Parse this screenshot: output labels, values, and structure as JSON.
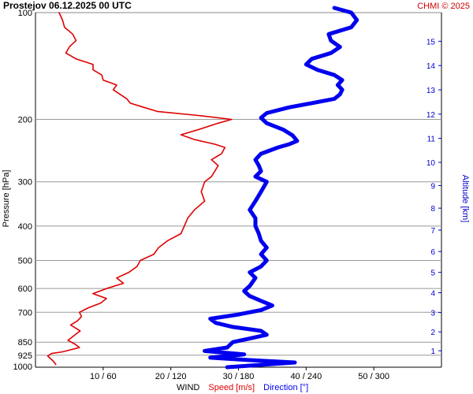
{
  "header": {
    "title": "Prostejov    06.12.2025 00 UTC",
    "credit": "CHMI © 2025"
  },
  "chart_data": {
    "type": "line",
    "title": "Prostejov    06.12.2025 00 UTC",
    "ylabel_left": "Pressure [hPa]",
    "ylabel_right": "Altitude [km]",
    "xlabel": {
      "prefix": "WIND",
      "speed": "Speed [m/s]",
      "direction": "Direction [°]"
    },
    "pressure_ticks": [
      100,
      200,
      300,
      400,
      500,
      600,
      700,
      850,
      925,
      1000
    ],
    "altitude_ticks": [
      1,
      2,
      3,
      4,
      5,
      6,
      7,
      8,
      9,
      10,
      11,
      12,
      13,
      14,
      15
    ],
    "x_tick_labels": [
      "10 / 60",
      "20 / 120",
      "30 / 180",
      "40 / 240",
      "50 / 300"
    ],
    "speed_range_ms": [
      0,
      60
    ],
    "direction_range_deg": [
      0,
      360
    ],
    "colors": {
      "speed": "#e00000",
      "direction": "#0000ee",
      "grid": "#999999",
      "credit": "#d00000"
    },
    "series": [
      {
        "name": "Speed [m/s]",
        "unit": "m/s",
        "points": [
          [
            982,
            3.0
          ],
          [
            960,
            2.6
          ],
          [
            930,
            1.8
          ],
          [
            915,
            2.4
          ],
          [
            905,
            4.0
          ],
          [
            880,
            6.5
          ],
          [
            860,
            5.8
          ],
          [
            840,
            4.8
          ],
          [
            820,
            5.5
          ],
          [
            790,
            6.6
          ],
          [
            760,
            5.2
          ],
          [
            740,
            6.2
          ],
          [
            720,
            6.8
          ],
          [
            700,
            6.5
          ],
          [
            680,
            7.8
          ],
          [
            660,
            9.6
          ],
          [
            640,
            10.5
          ],
          [
            620,
            8.5
          ],
          [
            600,
            10.5
          ],
          [
            580,
            13.0
          ],
          [
            560,
            12.0
          ],
          [
            540,
            13.8
          ],
          [
            520,
            15.0
          ],
          [
            500,
            15.5
          ],
          [
            480,
            17.5
          ],
          [
            460,
            18.2
          ],
          [
            440,
            19.5
          ],
          [
            420,
            21.5
          ],
          [
            400,
            22.0
          ],
          [
            380,
            22.5
          ],
          [
            360,
            23.5
          ],
          [
            340,
            25.0
          ],
          [
            320,
            24.5
          ],
          [
            300,
            25.0
          ],
          [
            290,
            26.0
          ],
          [
            280,
            26.5
          ],
          [
            270,
            27.0
          ],
          [
            260,
            26.0
          ],
          [
            250,
            27.5
          ],
          [
            240,
            28.0
          ],
          [
            235,
            26.5
          ],
          [
            228,
            23.5
          ],
          [
            221,
            21.5
          ],
          [
            214,
            24.0
          ],
          [
            205,
            27.0
          ],
          [
            200,
            29.0
          ],
          [
            195,
            24.0
          ],
          [
            190,
            18.0
          ],
          [
            185,
            16.0
          ],
          [
            180,
            14.0
          ],
          [
            175,
            13.5
          ],
          [
            170,
            12.5
          ],
          [
            165,
            11.5
          ],
          [
            160,
            12.0
          ],
          [
            155,
            10.0
          ],
          [
            150,
            9.8
          ],
          [
            145,
            8.5
          ],
          [
            140,
            8.5
          ],
          [
            135,
            6.0
          ],
          [
            130,
            4.5
          ],
          [
            125,
            5.0
          ],
          [
            120,
            6.0
          ],
          [
            115,
            5.5
          ],
          [
            110,
            4.3
          ],
          [
            105,
            4.0
          ],
          [
            100,
            3.5
          ]
        ]
      },
      {
        "name": "Direction [°]",
        "unit": "deg",
        "points": [
          [
            1000,
            170
          ],
          [
            985,
            200
          ],
          [
            970,
            230
          ],
          [
            955,
            190
          ],
          [
            940,
            155
          ],
          [
            920,
            185
          ],
          [
            900,
            150
          ],
          [
            880,
            170
          ],
          [
            850,
            175
          ],
          [
            830,
            190
          ],
          [
            810,
            205
          ],
          [
            790,
            200
          ],
          [
            770,
            175
          ],
          [
            750,
            160
          ],
          [
            730,
            155
          ],
          [
            710,
            180
          ],
          [
            690,
            200
          ],
          [
            670,
            210
          ],
          [
            650,
            200
          ],
          [
            630,
            190
          ],
          [
            610,
            185
          ],
          [
            590,
            190
          ],
          [
            560,
            195
          ],
          [
            540,
            190
          ],
          [
            520,
            200
          ],
          [
            500,
            205
          ],
          [
            480,
            200
          ],
          [
            460,
            205
          ],
          [
            440,
            200
          ],
          [
            420,
            198
          ],
          [
            400,
            195
          ],
          [
            380,
            195
          ],
          [
            360,
            190
          ],
          [
            340,
            195
          ],
          [
            320,
            200
          ],
          [
            300,
            205
          ],
          [
            290,
            195
          ],
          [
            280,
            200
          ],
          [
            270,
            198
          ],
          [
            260,
            195
          ],
          [
            250,
            200
          ],
          [
            240,
            215
          ],
          [
            235,
            225
          ],
          [
            230,
            232
          ],
          [
            222,
            228
          ],
          [
            214,
            220
          ],
          [
            205,
            205
          ],
          [
            198,
            200
          ],
          [
            192,
            205
          ],
          [
            185,
            225
          ],
          [
            180,
            245
          ],
          [
            175,
            265
          ],
          [
            170,
            270
          ],
          [
            165,
            272
          ],
          [
            160,
            268
          ],
          [
            155,
            272
          ],
          [
            150,
            265
          ],
          [
            145,
            250
          ],
          [
            140,
            240
          ],
          [
            135,
            245
          ],
          [
            130,
            262
          ],
          [
            125,
            270
          ],
          [
            120,
            262
          ],
          [
            115,
            260
          ],
          [
            110,
            280
          ],
          [
            105,
            285
          ],
          [
            100,
            280
          ],
          [
            97,
            265
          ]
        ]
      }
    ],
    "grid": true
  }
}
